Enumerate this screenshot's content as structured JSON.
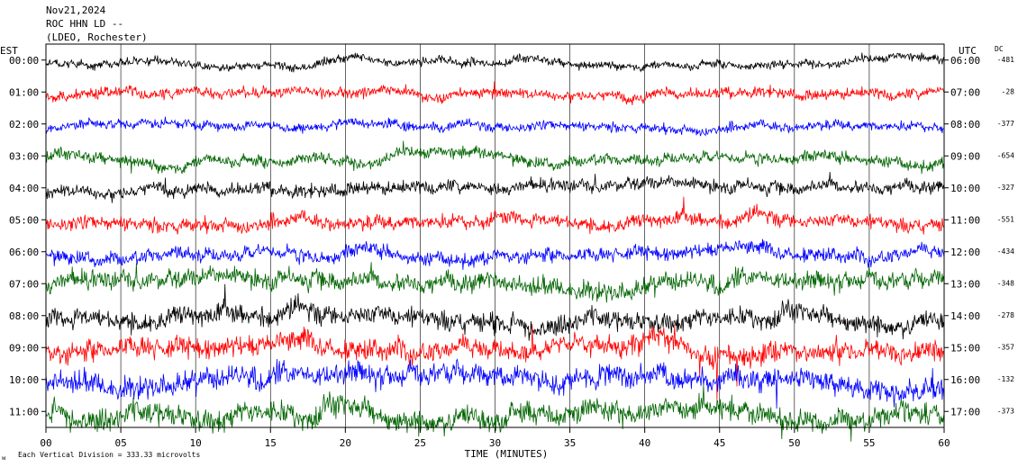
{
  "header": {
    "date": "Nov21,2024",
    "station": "ROC HHN LD --",
    "network": "(LDEO, Rochester)"
  },
  "labels": {
    "left_tz": "EST",
    "right_tz": "UTC",
    "dc": "DC",
    "xlabel": "TIME (MINUTES)",
    "footer": "Each Vertical Division =  333.33 microvolts",
    "footer_mark": "ᴍ"
  },
  "chart_data": {
    "type": "line",
    "title": "",
    "xlabel": "TIME (MINUTES)",
    "xlim": [
      0,
      60
    ],
    "x_ticks": [
      "00",
      "05",
      "10",
      "15",
      "20",
      "25",
      "30",
      "35",
      "40",
      "45",
      "50",
      "55",
      "60"
    ],
    "series_colors": [
      "#000000",
      "#ff0000",
      "#0000ff",
      "#006400"
    ],
    "rows": [
      {
        "est": "00:00",
        "utc": "06:00",
        "dc": "-481",
        "amplitude": 0.35
      },
      {
        "est": "01:00",
        "utc": "07:00",
        "dc": "-28",
        "amplitude": 0.45
      },
      {
        "est": "02:00",
        "utc": "08:00",
        "dc": "-377",
        "amplitude": 0.4
      },
      {
        "est": "03:00",
        "utc": "09:00",
        "dc": "-654",
        "amplitude": 0.5
      },
      {
        "est": "04:00",
        "utc": "10:00",
        "dc": "-327",
        "amplitude": 0.55
      },
      {
        "est": "05:00",
        "utc": "11:00",
        "dc": "-551",
        "amplitude": 0.6
      },
      {
        "est": "06:00",
        "utc": "12:00",
        "dc": "-434",
        "amplitude": 0.6
      },
      {
        "est": "07:00",
        "utc": "13:00",
        "dc": "-348",
        "amplitude": 0.8
      },
      {
        "est": "08:00",
        "utc": "14:00",
        "dc": "-278",
        "amplitude": 0.85
      },
      {
        "est": "09:00",
        "utc": "15:00",
        "dc": "-357",
        "amplitude": 0.9
      },
      {
        "est": "10:00",
        "utc": "16:00",
        "dc": "-132",
        "amplitude": 0.95
      },
      {
        "est": "11:00",
        "utc": "17:00",
        "dc": "-373",
        "amplitude": 1.0
      }
    ]
  }
}
